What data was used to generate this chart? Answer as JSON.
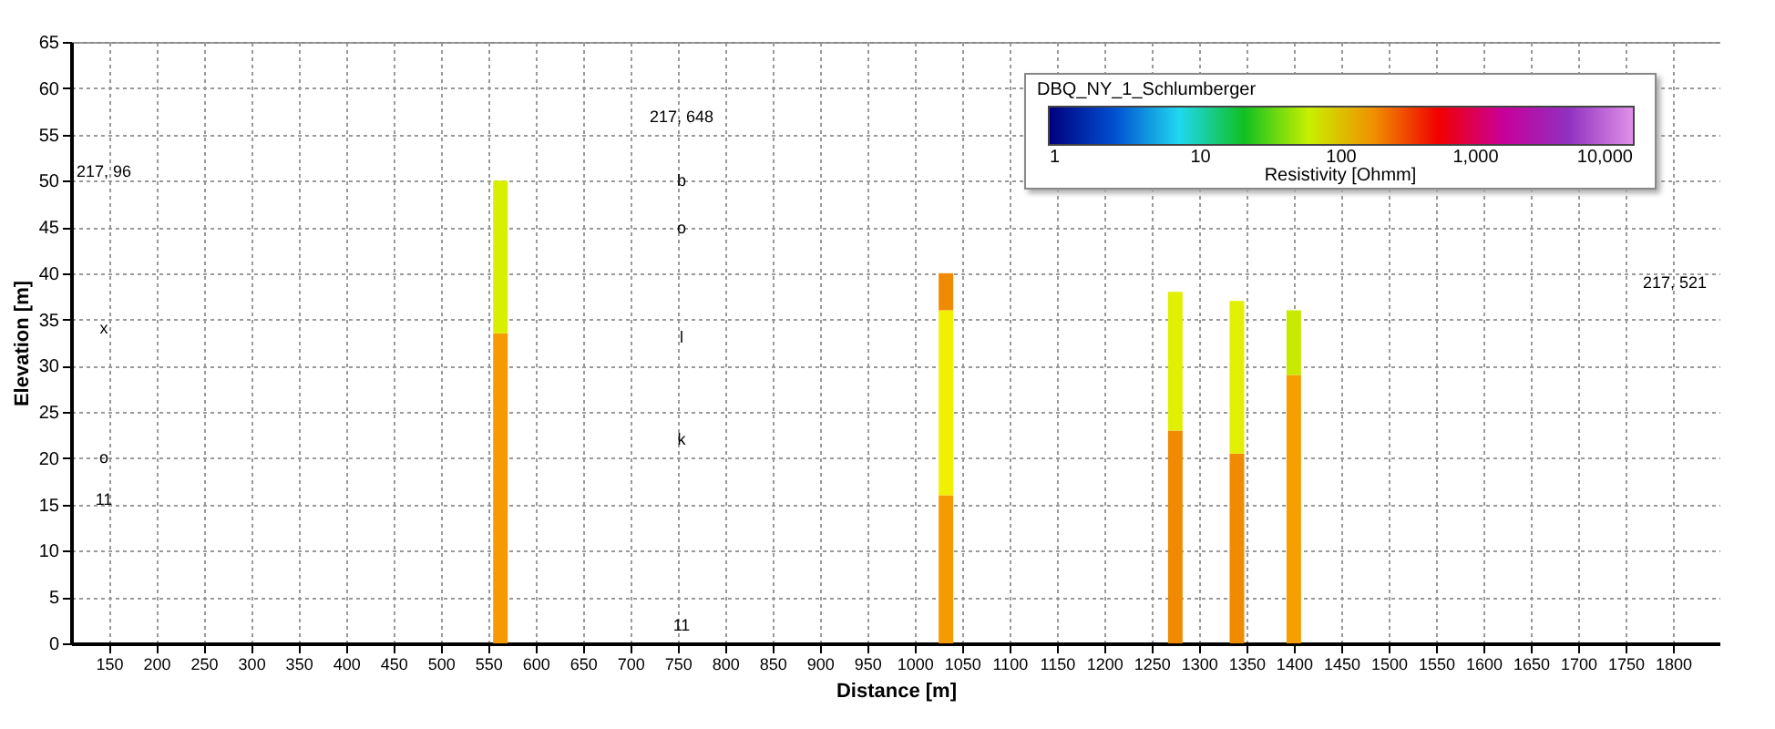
{
  "chart_data": {
    "type": "bar",
    "stacked": true,
    "x": [
      563,
      1033,
      1275,
      1340,
      1400
    ],
    "series": [
      {
        "values": [
          33.5,
          16,
          23,
          20.5,
          29
        ],
        "colors": [
          "#f59a00",
          "#f59a00",
          "#f08a00",
          "#f08a00",
          "#f5a000"
        ]
      },
      {
        "values": [
          16.5,
          20,
          15,
          16.5,
          7
        ],
        "colors": [
          "#d8f000",
          "#f0f000",
          "#e0f000",
          "#e0f000",
          "#c8ea00"
        ]
      },
      {
        "values": [
          null,
          4,
          null,
          null,
          null
        ],
        "colors": [
          null,
          "#f08a00",
          null,
          null,
          null
        ]
      }
    ],
    "xlabel": "Distance [m]",
    "ylabel": "Elevation [m]",
    "xlim": [
      110,
      1850
    ],
    "xticks": [
      150,
      200,
      250,
      300,
      350,
      400,
      450,
      500,
      550,
      600,
      650,
      700,
      750,
      800,
      850,
      900,
      950,
      1000,
      1050,
      1100,
      1150,
      1200,
      1250,
      1300,
      1350,
      1400,
      1450,
      1500,
      1550,
      1600,
      1650,
      1700,
      1750,
      1800
    ],
    "ylim": [
      0,
      65
    ],
    "yticks": [
      0,
      5,
      10,
      15,
      20,
      25,
      30,
      35,
      40,
      45,
      50,
      55,
      60,
      65
    ],
    "grid": true,
    "legend_title": "DBQ_NY_1_Schlumberger",
    "clabel": "Resistivity [Ohmm]",
    "annotations": [
      "217, 96",
      "x",
      "o",
      "11",
      "217, 648",
      "b",
      "o",
      "l",
      "k",
      "11",
      "217, 521",
      "1",
      "10",
      "100",
      "1,000",
      "10,000"
    ]
  }
}
